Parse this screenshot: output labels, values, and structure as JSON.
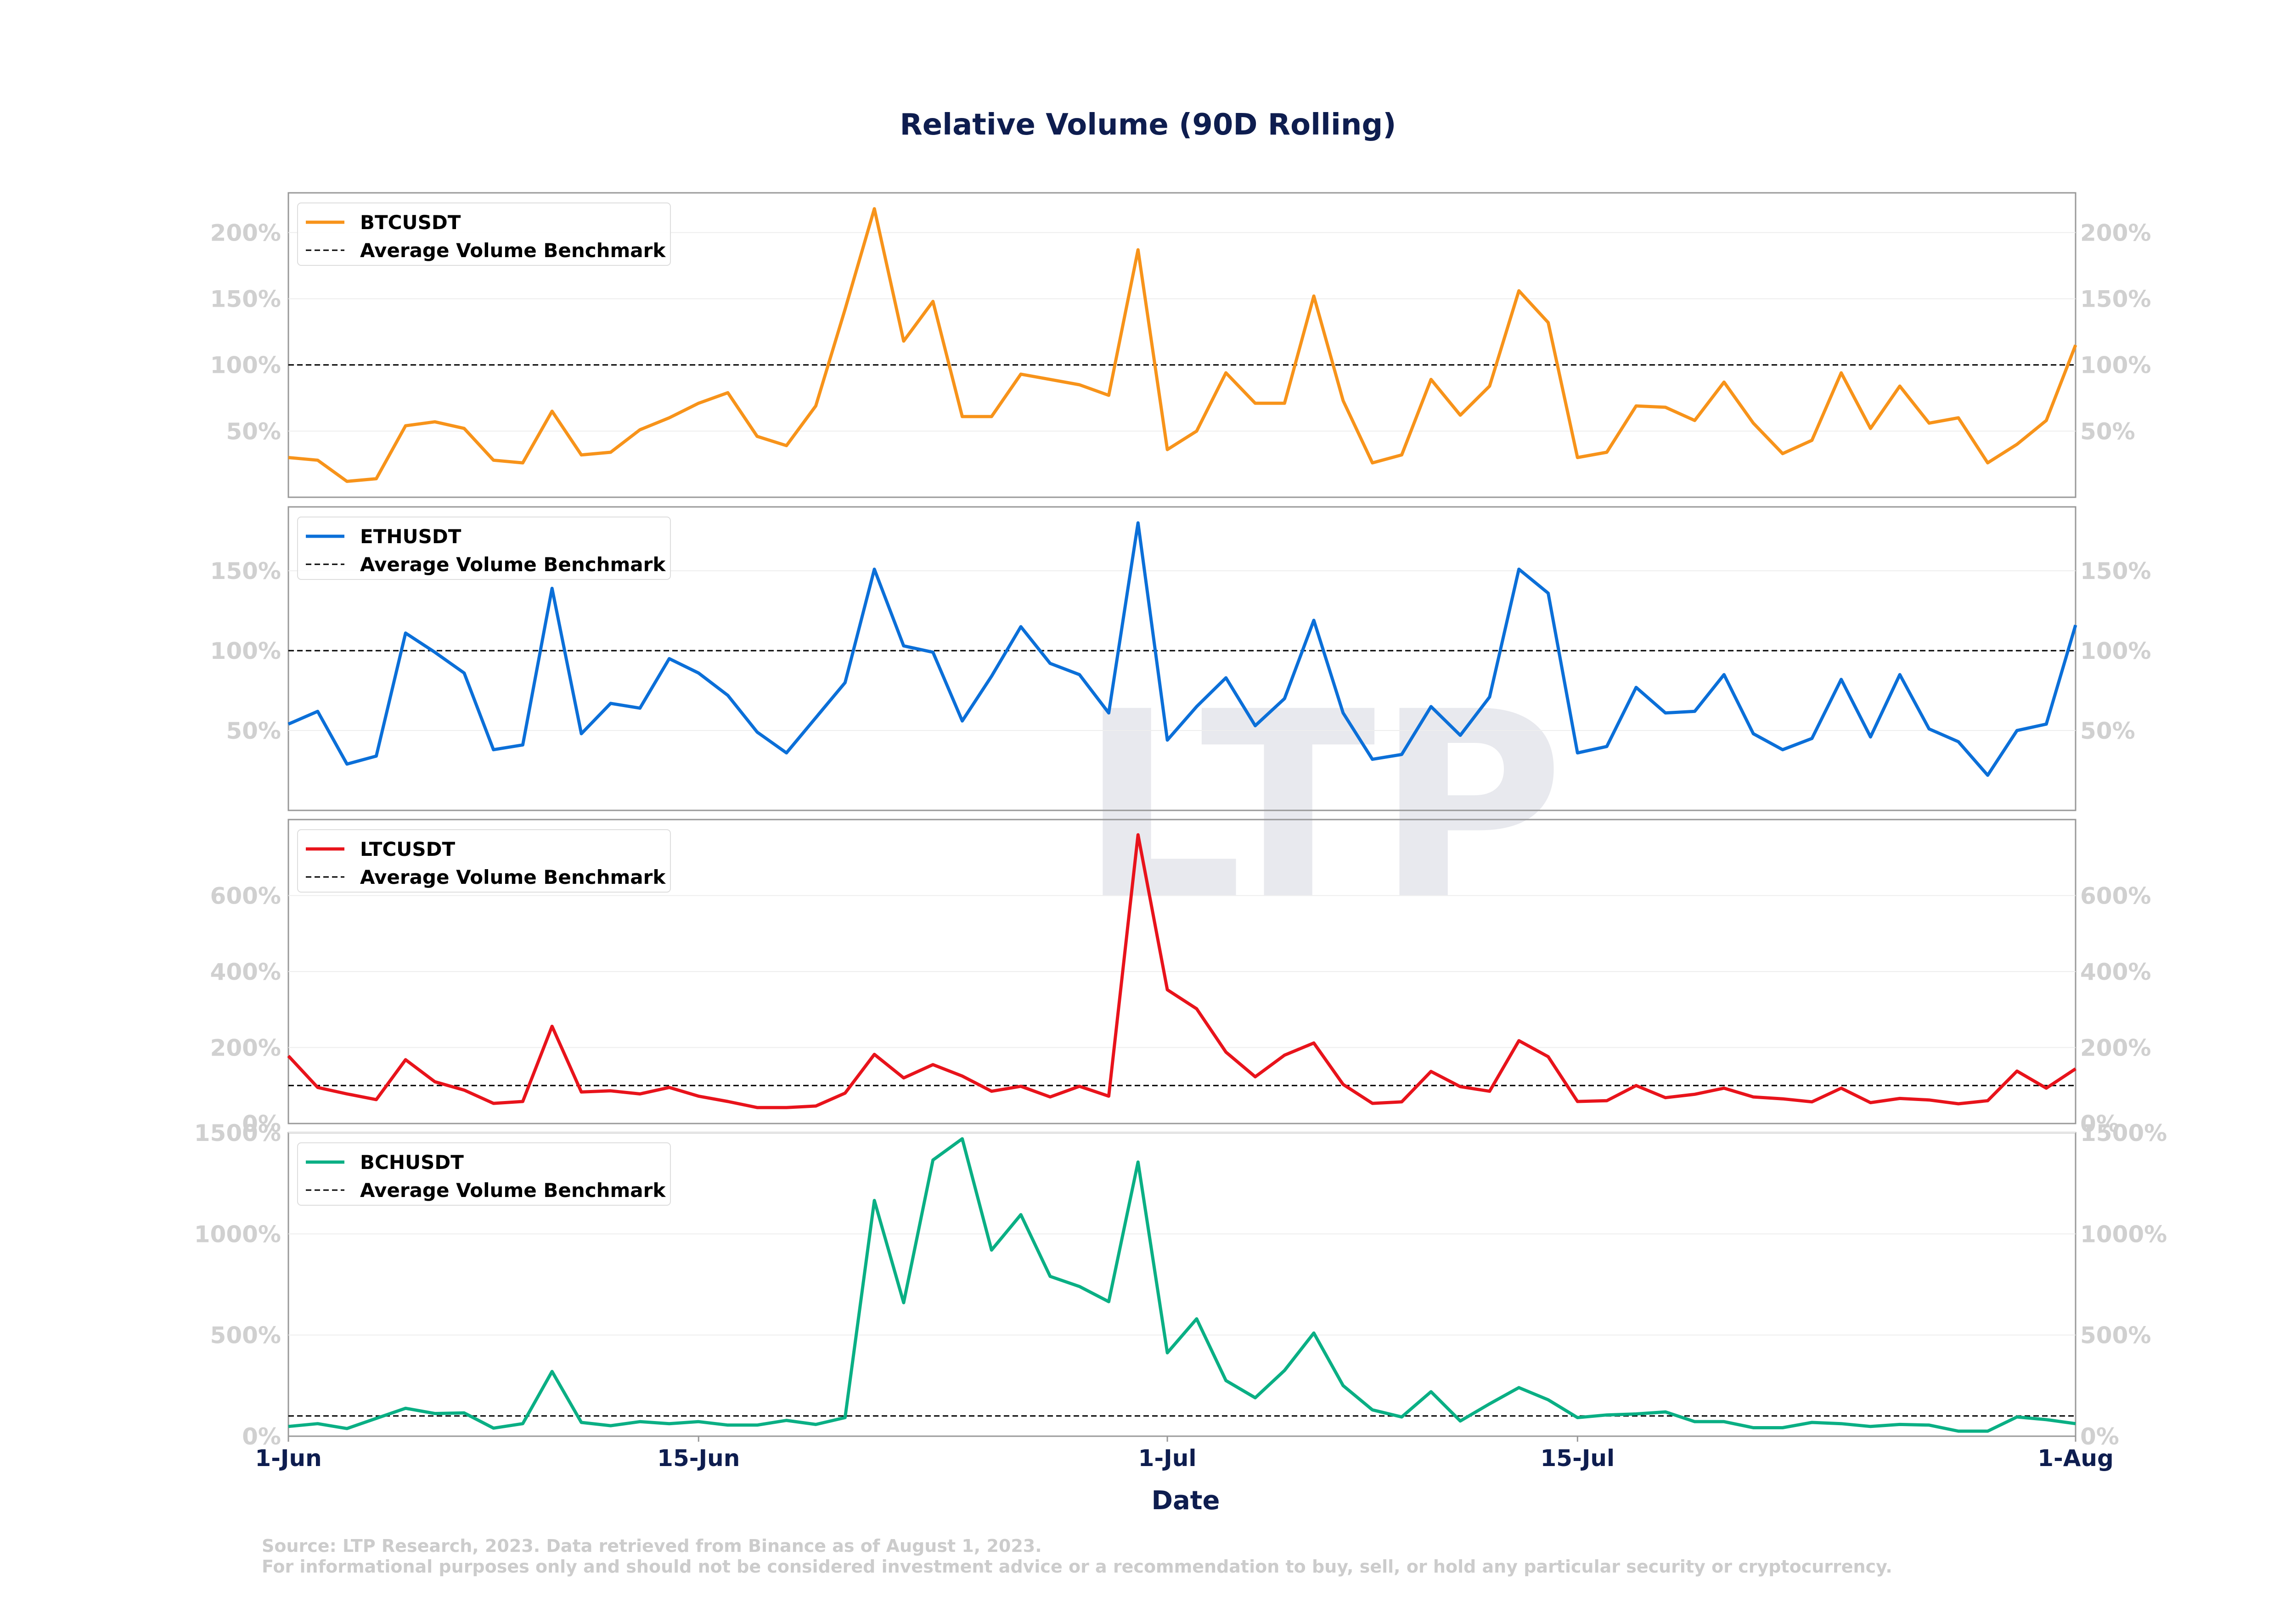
{
  "title": "Relative Volume (90D Rolling)",
  "xlabel": "Date",
  "footer": {
    "line1": "Source: LTP Research, 2023. Data retrieved from Binance as of August 1, 2023.",
    "line2": "For informational purposes only and should not be considered investment advice or a recommendation to buy, sell, or hold any particular security or cryptocurrency."
  },
  "watermark": "LTP",
  "benchmark_label": "Average Volume Benchmark",
  "x_ticks": [
    {
      "day": 0,
      "label": "1-Jun"
    },
    {
      "day": 14,
      "label": "15-Jun"
    },
    {
      "day": 30,
      "label": "1-Jul"
    },
    {
      "day": 44,
      "label": "15-Jul"
    },
    {
      "day": 61,
      "label": "1-Aug"
    }
  ],
  "chart_data": {
    "type": "line",
    "x_start": "2023-06-01",
    "x_end": "2023-08-01",
    "xlabel": "Date",
    "benchmark": 100,
    "series": [
      {
        "name": "BTCUSDT",
        "color": "#f7931a",
        "ylim": [
          0,
          230
        ],
        "yticks": [
          50,
          100,
          150,
          200
        ],
        "values": [
          30,
          28,
          12,
          14,
          54,
          57,
          52,
          28,
          26,
          65,
          32,
          34,
          51,
          60,
          71,
          79,
          46,
          39,
          69,
          142,
          218,
          118,
          148,
          61,
          61,
          93,
          89,
          85,
          77,
          187,
          36,
          50,
          94,
          71,
          71,
          152,
          73,
          26,
          32,
          89,
          62,
          84,
          156,
          132,
          30,
          34,
          69,
          68,
          58,
          87,
          56,
          33,
          43,
          94,
          52,
          84,
          56,
          60,
          26,
          40,
          58,
          115
        ]
      },
      {
        "name": "ETHUSDT",
        "color": "#0b6fd8",
        "ylim": [
          0,
          190
        ],
        "yticks": [
          50,
          100,
          150
        ],
        "values": [
          54,
          62,
          29,
          34,
          111,
          99,
          86,
          38,
          41,
          139,
          48,
          67,
          64,
          95,
          86,
          72,
          49,
          36,
          58,
          80,
          151,
          103,
          99,
          56,
          84,
          115,
          92,
          85,
          61,
          180,
          44,
          65,
          83,
          53,
          70,
          119,
          61,
          32,
          35,
          65,
          47,
          71,
          151,
          136,
          36,
          40,
          77,
          61,
          62,
          85,
          48,
          38,
          45,
          82,
          46,
          85,
          51,
          43,
          22,
          50,
          54,
          116
        ]
      },
      {
        "name": "LTCUSDT",
        "color": "#e8131b",
        "ylim": [
          0,
          800
        ],
        "yticks": [
          0,
          200,
          400,
          600
        ],
        "values": [
          178,
          95,
          78,
          63,
          168,
          110,
          88,
          53,
          58,
          256,
          83,
          86,
          78,
          95,
          72,
          58,
          42,
          42,
          46,
          80,
          182,
          120,
          155,
          125,
          85,
          98,
          70,
          98,
          72,
          760,
          352,
          302,
          188,
          123,
          180,
          212,
          103,
          53,
          57,
          137,
          97,
          85,
          218,
          176,
          58,
          60,
          100,
          68,
          77,
          93,
          70,
          65,
          57,
          93,
          55,
          66,
          62,
          52,
          60,
          138,
          93,
          144
        ]
      },
      {
        "name": "BCHUSDT",
        "color": "#0aaf84",
        "ylim": [
          0,
          1500
        ],
        "yticks": [
          0,
          500,
          1000,
          1500
        ],
        "values": [
          48,
          62,
          38,
          88,
          138,
          112,
          115,
          40,
          62,
          320,
          68,
          52,
          72,
          62,
          72,
          55,
          55,
          78,
          58,
          92,
          1165,
          660,
          1365,
          1470,
          920,
          1095,
          790,
          740,
          665,
          1355,
          412,
          580,
          275,
          190,
          325,
          510,
          250,
          130,
          95,
          220,
          75,
          160,
          240,
          180,
          92,
          105,
          110,
          120,
          72,
          72,
          42,
          42,
          68,
          62,
          48,
          58,
          55,
          25,
          25,
          95,
          82,
          62
        ]
      }
    ]
  }
}
